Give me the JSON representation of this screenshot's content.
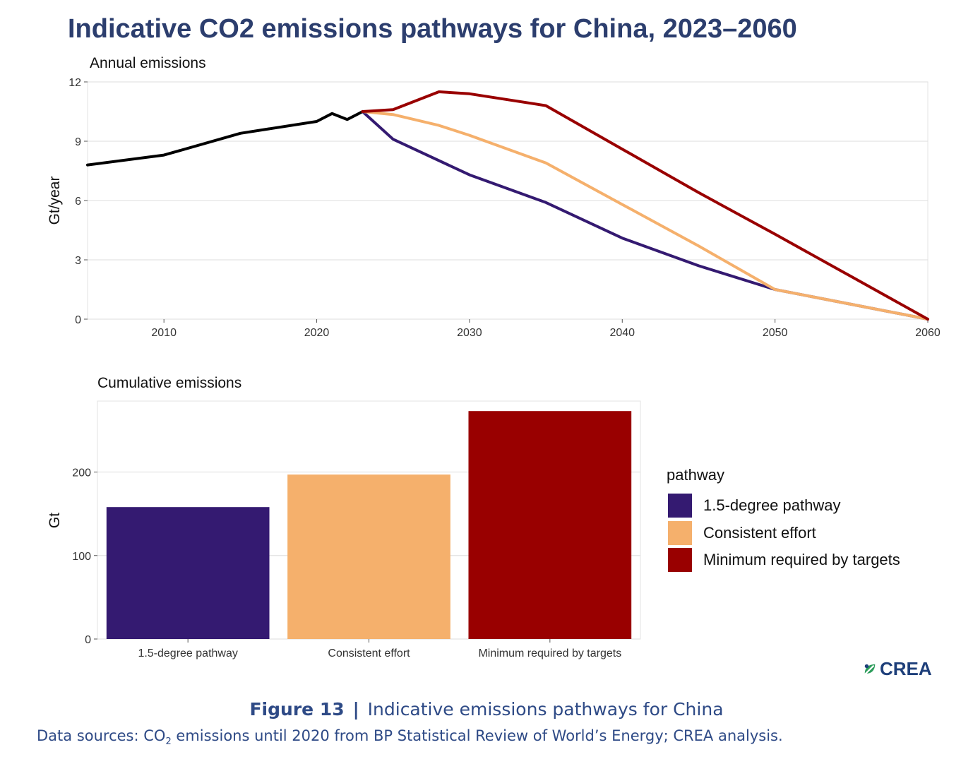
{
  "title": "Indicative CO2 emissions pathways for China, 2023–2060",
  "chart_data": [
    {
      "type": "line",
      "subtitle": "Annual emissions",
      "ylabel": "Gt/year",
      "xlim": [
        2005,
        2060
      ],
      "ylim": [
        0,
        12
      ],
      "x_ticks": [
        2010,
        2020,
        2030,
        2040,
        2050,
        2060
      ],
      "y_ticks": [
        0,
        3,
        6,
        9,
        12
      ],
      "grid": true,
      "series": [
        {
          "key": "historical",
          "color": "#000000",
          "x": [
            2005,
            2010,
            2015,
            2020,
            2021,
            2022,
            2023
          ],
          "y": [
            7.8,
            8.3,
            9.4,
            10.0,
            10.4,
            10.1,
            10.5
          ]
        },
        {
          "name": "1.5-degree pathway",
          "color": "#341a71",
          "x": [
            2023,
            2025,
            2030,
            2035,
            2040,
            2045,
            2050,
            2055,
            2060
          ],
          "y": [
            10.5,
            9.1,
            7.3,
            5.9,
            4.1,
            2.7,
            1.5,
            0.75,
            0.0
          ]
        },
        {
          "name": "Consistent effort",
          "color": "#f5b06c",
          "x": [
            2023,
            2025,
            2028,
            2030,
            2035,
            2040,
            2045,
            2050,
            2055,
            2060
          ],
          "y": [
            10.5,
            10.35,
            9.8,
            9.3,
            7.9,
            5.8,
            3.7,
            1.5,
            0.75,
            0.0
          ]
        },
        {
          "name": "Minimum required by targets",
          "color": "#990000",
          "x": [
            2023,
            2025,
            2028,
            2030,
            2035,
            2040,
            2045,
            2050,
            2055,
            2060
          ],
          "y": [
            10.5,
            10.6,
            11.5,
            11.4,
            10.8,
            8.6,
            6.4,
            4.3,
            2.15,
            0.0
          ]
        }
      ]
    },
    {
      "type": "bar",
      "subtitle": "Cumulative emissions",
      "ylabel": "Gt",
      "ylim": [
        0,
        285
      ],
      "y_ticks": [
        0,
        100,
        200
      ],
      "categories": [
        "1.5-degree pathway",
        "Consistent effort",
        "Minimum required by targets"
      ],
      "values": [
        158,
        197,
        273
      ],
      "colors": [
        "#341a71",
        "#f5b06c",
        "#990000"
      ],
      "grid": true,
      "legend": {
        "title": "pathway",
        "position": "right",
        "items": [
          {
            "label": "1.5-degree pathway",
            "color": "#341a71"
          },
          {
            "label": "Consistent effort",
            "color": "#f5b06c"
          },
          {
            "label": "Minimum required by targets",
            "color": "#990000"
          }
        ]
      }
    }
  ],
  "logo": {
    "text": "CREA",
    "icon": "crea-leaf-icon",
    "color": "#1e3f7a"
  },
  "caption": {
    "figure": "Figure 13",
    "separator": "|",
    "text": "Indicative emissions pathways for China"
  },
  "sources": {
    "before": "Data sources: CO",
    "subscript": "2",
    "after": " emissions until 2020 from BP Statistical Review of World’s Energy; CREA analysis."
  }
}
